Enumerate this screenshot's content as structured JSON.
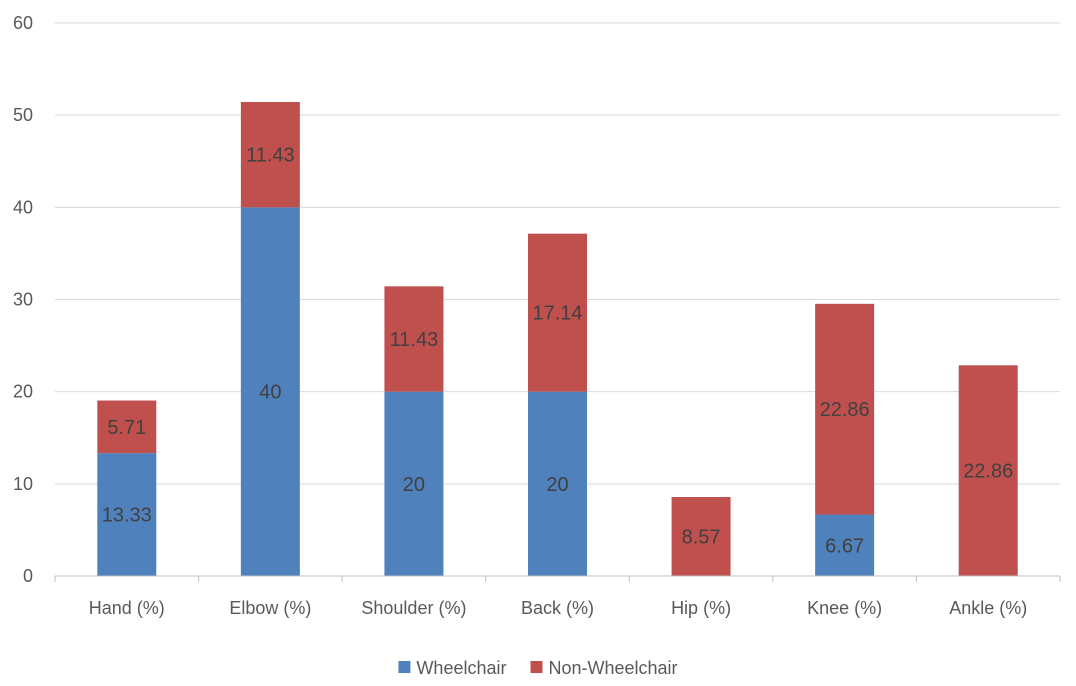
{
  "chart_data": {
    "type": "bar",
    "stacked": true,
    "title": "",
    "xlabel": "",
    "ylabel": "",
    "categories": [
      "Hand (%)",
      "Elbow (%)",
      "Shoulder (%)",
      "Back (%)",
      "Hip (%)",
      "Knee (%)",
      "Ankle (%)"
    ],
    "series": [
      {
        "name": "Wheelchair",
        "color": "#4f81bd",
        "values": [
          13.33,
          40,
          20,
          20,
          0,
          6.67,
          0
        ],
        "labels": [
          "13.33",
          "40",
          "20",
          "20",
          "",
          "6.67",
          ""
        ]
      },
      {
        "name": "Non-Wheelchair",
        "color": "#c0504d",
        "values": [
          5.71,
          11.43,
          11.43,
          17.14,
          8.57,
          22.86,
          22.86
        ],
        "labels": [
          "5.71",
          "11.43",
          "11.43",
          "17.14",
          "8.57",
          "22.86",
          "22.86"
        ]
      }
    ],
    "ylim": [
      0,
      60
    ],
    "yticks": [
      0,
      10,
      20,
      30,
      40,
      50,
      60
    ],
    "grid": true,
    "legend": "bottom-center"
  }
}
